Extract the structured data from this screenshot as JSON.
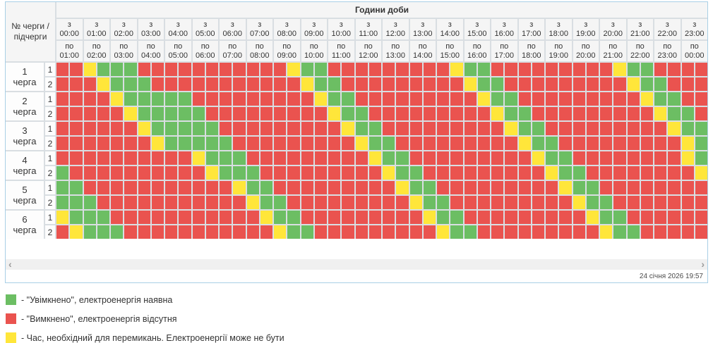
{
  "colors": {
    "on": "#6cbe63",
    "off": "#ea534f",
    "switch": "#ffe63a"
  },
  "cell_legend": {
    "G": "on",
    "R": "off",
    "Y": "switch"
  },
  "header": {
    "corner_label": "№ черги / підчерги",
    "hours_title": "Години доби",
    "columns": [
      {
        "from": "з 00:00",
        "to": "по 01:00"
      },
      {
        "from": "з 01:00",
        "to": "по 02:00"
      },
      {
        "from": "з 02:00",
        "to": "по 03:00"
      },
      {
        "from": "з 03:00",
        "to": "по 04:00"
      },
      {
        "from": "з 04:00",
        "to": "по 05:00"
      },
      {
        "from": "з 05:00",
        "to": "по 06:00"
      },
      {
        "from": "з 06:00",
        "to": "по 07:00"
      },
      {
        "from": "з 07:00",
        "to": "по 08:00"
      },
      {
        "from": "з 08:00",
        "to": "по 09:00"
      },
      {
        "from": "з 09:00",
        "to": "по 10:00"
      },
      {
        "from": "з 10:00",
        "to": "по 11:00"
      },
      {
        "from": "з 11:00",
        "to": "по 12:00"
      },
      {
        "from": "з 12:00",
        "to": "по 13:00"
      },
      {
        "from": "з 13:00",
        "to": "по 14:00"
      },
      {
        "from": "з 14:00",
        "to": "по 15:00"
      },
      {
        "from": "з 15:00",
        "to": "по 16:00"
      },
      {
        "from": "з 16:00",
        "to": "по 17:00"
      },
      {
        "from": "з 17:00",
        "to": "по 18:00"
      },
      {
        "from": "з 18:00",
        "to": "по 19:00"
      },
      {
        "from": "з 19:00",
        "to": "по 20:00"
      },
      {
        "from": "з 20:00",
        "to": "по 21:00"
      },
      {
        "from": "з 21:00",
        "to": "по 22:00"
      },
      {
        "from": "з 22:00",
        "to": "по 23:00"
      },
      {
        "from": "з 23:00",
        "to": "по 00:00"
      }
    ]
  },
  "queues": [
    {
      "label": "1 черга",
      "subqueues": [
        {
          "label": "1",
          "cells": "RRYGGGRRRRRRRRRRRYGGRRRRRRRRRYGGRRRRRRRRRYGGRRRR"
        },
        {
          "label": "2",
          "cells": "RRRYGGGRRRRRRRRRRRYGGRRRRRRRRRYGGRRRRRRRRRYGGRRR"
        }
      ]
    },
    {
      "label": "2 черга",
      "subqueues": [
        {
          "label": "1",
          "cells": "RRRRYGGGGGRRRRRRRRRYGGRRRRRRRRRYGGRRRRRRRRRYGGRR"
        },
        {
          "label": "2",
          "cells": "RRRRRYGGGGGRRRRRRRRRYGGRRRRRRRRRYGGRRRRRRRRRYGGR"
        }
      ]
    },
    {
      "label": "3 черга",
      "subqueues": [
        {
          "label": "1",
          "cells": "RRRRRRYGGGGGRRRRRRRRRYGGRRRRRRRRRYGGRRRRRRRRRYGG"
        },
        {
          "label": "2",
          "cells": "RRRRRRRYGGGGGRRRRRRRRRYGGRRRRRRRRRYGGRRRRRRRRRYG"
        }
      ]
    },
    {
      "label": "4 черга",
      "subqueues": [
        {
          "label": "1",
          "cells": "RRRRRRRRRRYGGGRRRRRRRRRYGGRRRRRRRRRYGGRRRRRRRRYG"
        },
        {
          "label": "2",
          "cells": "GRRRRRRRRRRYGGGRRRRRRRRRYGGRRRRRRRRRYGGRRRRRRRRY"
        }
      ]
    },
    {
      "label": "5 черга",
      "subqueues": [
        {
          "label": "1",
          "cells": "GGRRRRRRRRRRRYGGRRRRRRRRRYGGRRRRRRRRRYGGRRRRRRRR"
        },
        {
          "label": "2",
          "cells": "GGGRRRRRRRRRRRYGGRRRRRRRRRYGGRRRRRRRRRYGGRRRRRRR"
        }
      ]
    },
    {
      "label": "6 черга",
      "subqueues": [
        {
          "label": "1",
          "cells": "YGGGRRRRRRRRRRRYGGRRRRRRRRRYGGRRRRRRRRRYGGRRRRRR"
        },
        {
          "label": "2",
          "cells": "RYGGGRRRRRRRRRRRYGGRRRRRRRRRYGGRRRRRRRRRYGGRRRRR"
        }
      ]
    }
  ],
  "scrollbar": {
    "left_arrow": "‹",
    "right_arrow": "›"
  },
  "footer": {
    "timestamp": "24 січня 2026 19:57"
  },
  "legend": {
    "items": [
      {
        "color": "on",
        "label": "- \"Увімкнено\", електроенергія наявна"
      },
      {
        "color": "off",
        "label": "- \"Вимкнено\", електроенергія відсутня"
      },
      {
        "color": "switch",
        "label": "- Час, необхідний для перемикань. Електроенергії може не бути"
      }
    ]
  }
}
